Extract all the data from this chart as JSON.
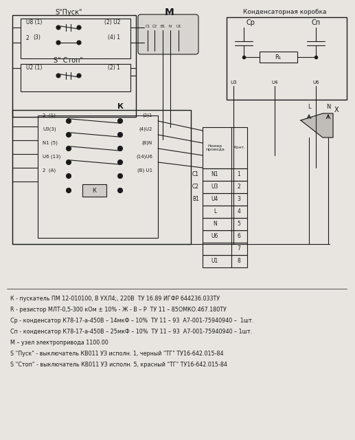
{
  "bg_color": "#e8e5e0",
  "line_color": "#1a1a1a",
  "notes": [
    "К - пускатель ПМ 12-010100, В УХЛ4;, 220В  ТУ 16.89 ИГФР 644236.033ТУ",
    "R - резистор МЛТ-0,5-300 кОм ± 10% - Ж - В – Р  ТУ 11 – 85ОМКО.467.180ТУ",
    "Ср - конденсатор К78-17-а-450В – 14мкФ – 10%  ТУ 11 – 93  А7-001-75940940 –  1шт.",
    "Сп - конденсатор К78-17-а-450В – 25мкФ – 10%  ТУ 11 – 93  А7-001-75940940 – 1шт.",
    "М – узел электропривода 1100.00",
    "S \"Пуск\" - выключатель КВ011 УЗ исполн. 1, черный \"ТГ\" ТУ16-642.015-84",
    "S \"Стоп\" - выключатель КВ011 УЗ исполн. 5, красный \"ТГ\" ТУ16-642.015-84"
  ],
  "figsize": [
    5.17,
    6.4
  ],
  "dpi": 100
}
